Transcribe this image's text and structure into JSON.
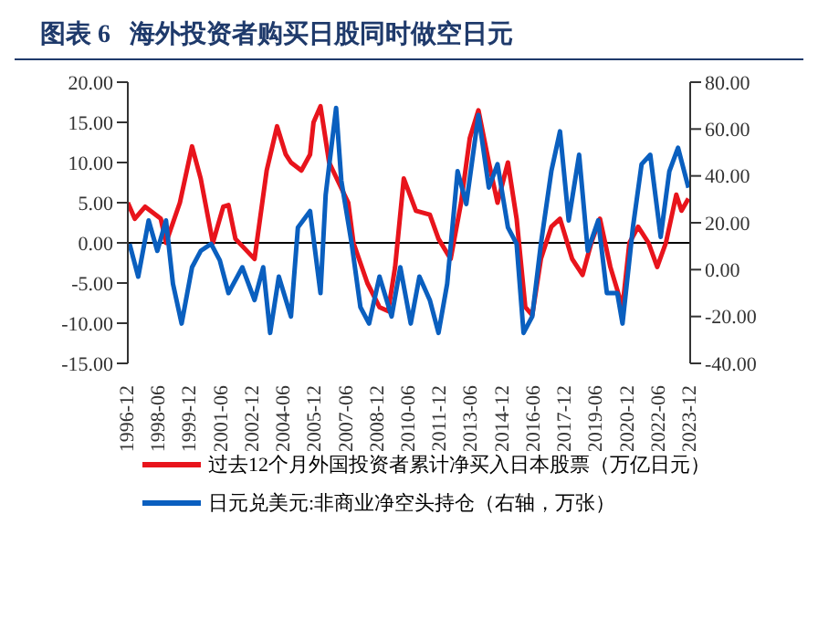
{
  "chart_data": {
    "type": "line",
    "title": "图表 6   海外投资者购买日股同时做空日元",
    "xlim": [
      "1996-12",
      "2023-12"
    ],
    "xticks": [
      "1996-12",
      "1998-06",
      "1999-12",
      "2001-06",
      "2002-12",
      "2004-06",
      "2005-12",
      "2007-06",
      "2008-12",
      "2010-06",
      "2011-12",
      "2013-06",
      "2014-12",
      "2016-06",
      "2017-12",
      "2019-06",
      "2020-12",
      "2022-06",
      "2023-12"
    ],
    "ylim": [
      -15,
      20
    ],
    "yticks": [
      {
        "value": -15,
        "label": "-15.00"
      },
      {
        "value": -10,
        "label": "-10.00"
      },
      {
        "value": -5,
        "label": "-5.00"
      },
      {
        "value": 0,
        "label": "0.00"
      },
      {
        "value": 5,
        "label": "5.00"
      },
      {
        "value": 10,
        "label": "10.00"
      },
      {
        "value": 15,
        "label": "15.00"
      },
      {
        "value": 20,
        "label": "20.00"
      }
    ],
    "y2lim": [
      -40,
      80
    ],
    "y2ticks": [
      {
        "value": -40,
        "label": "-40.00"
      },
      {
        "value": -20,
        "label": "-20.00"
      },
      {
        "value": 0,
        "label": "0.00"
      },
      {
        "value": 20,
        "label": "20.00"
      },
      {
        "value": 40,
        "label": "40.00"
      },
      {
        "value": 60,
        "label": "60.00"
      },
      {
        "value": 80,
        "label": "80.00"
      }
    ],
    "ref_lines": [
      {
        "axis": "y",
        "value": 0,
        "color": "#000000"
      }
    ],
    "grid": false,
    "legend": "bottom",
    "marker": "none",
    "line_style": "solid",
    "series": [
      {
        "name": "过去12个月外国投资者累计净买入日本股票（万亿日元）",
        "color": "#e8141c",
        "x": [
          "1996-12",
          "1997-04",
          "1997-10",
          "1998-07",
          "1998-10",
          "1999-06",
          "2000-01",
          "2000-06",
          "2001-01",
          "2001-07",
          "2001-10",
          "2002-02",
          "2003-01",
          "2003-08",
          "2004-02",
          "2004-07",
          "2004-10",
          "2005-04",
          "2005-09",
          "2005-11",
          "2006-03",
          "2006-08",
          "2007-07",
          "2007-10",
          "2008-06",
          "2009-01",
          "2009-06",
          "2009-10",
          "2010-03",
          "2010-10",
          "2011-06",
          "2011-11",
          "2012-06",
          "2012-12",
          "2013-05",
          "2013-10",
          "2014-04",
          "2014-09",
          "2015-03",
          "2015-08",
          "2016-01",
          "2016-05",
          "2016-10",
          "2017-04",
          "2017-09",
          "2018-04",
          "2018-10",
          "2019-03",
          "2019-08",
          "2020-02",
          "2020-09",
          "2021-01",
          "2021-06",
          "2021-12",
          "2022-05",
          "2022-10",
          "2023-04",
          "2023-07",
          "2023-11"
        ],
        "values": [
          5,
          3,
          4.5,
          3,
          0,
          5,
          12,
          8,
          0,
          4.5,
          4.7,
          0.5,
          -2,
          9,
          14.5,
          11,
          10,
          9,
          11,
          15,
          17,
          10,
          5,
          0,
          -5,
          -8,
          -8.5,
          -3,
          8,
          4,
          3.5,
          0.5,
          -2,
          5,
          13,
          16.5,
          10,
          5,
          10,
          3,
          -8,
          -9,
          -2,
          2,
          3,
          -2,
          -4,
          0,
          3,
          -3,
          -8,
          0,
          2,
          0,
          -3,
          0,
          6,
          4,
          5.5
        ]
      },
      {
        "name": "日元兑美元:非商业净空头持仓（右轴，万张）",
        "color": "#0a5fbf",
        "axis": "y2",
        "x": [
          "1997-01",
          "1997-06",
          "1997-12",
          "1998-05",
          "1998-10",
          "1999-02",
          "1999-07",
          "2000-01",
          "2000-06",
          "2000-12",
          "2001-05",
          "2001-10",
          "2002-06",
          "2003-01",
          "2003-06",
          "2003-10",
          "2004-03",
          "2004-10",
          "2005-02",
          "2005-09",
          "2006-03",
          "2006-06",
          "2006-12",
          "2007-03",
          "2007-09",
          "2008-02",
          "2008-07",
          "2009-01",
          "2009-08",
          "2010-01",
          "2010-07",
          "2010-12",
          "2011-06",
          "2011-11",
          "2012-04",
          "2012-10",
          "2013-03",
          "2013-10",
          "2014-04",
          "2014-09",
          "2015-03",
          "2015-08",
          "2015-12",
          "2016-05",
          "2016-10",
          "2017-04",
          "2017-09",
          "2018-02",
          "2018-08",
          "2019-01",
          "2019-07",
          "2019-12",
          "2020-06",
          "2020-09",
          "2021-03",
          "2021-08",
          "2022-01",
          "2022-07",
          "2022-12",
          "2023-05",
          "2023-11"
        ],
        "values": [
          11,
          -3,
          21,
          8,
          21,
          -6,
          -23,
          1,
          8,
          11,
          4,
          -10,
          1,
          -13,
          1,
          -27,
          -3,
          -20,
          18,
          25,
          -10,
          32,
          69,
          38,
          11,
          -16,
          -23,
          -3,
          -20,
          1,
          -23,
          -3,
          -13,
          -27,
          -6,
          42,
          28,
          66,
          35,
          45,
          18,
          11,
          -27,
          -20,
          11,
          42,
          59,
          21,
          49,
          8,
          21,
          -10,
          -10,
          -23,
          18,
          45,
          49,
          14,
          42,
          52,
          35
        ]
      }
    ]
  }
}
